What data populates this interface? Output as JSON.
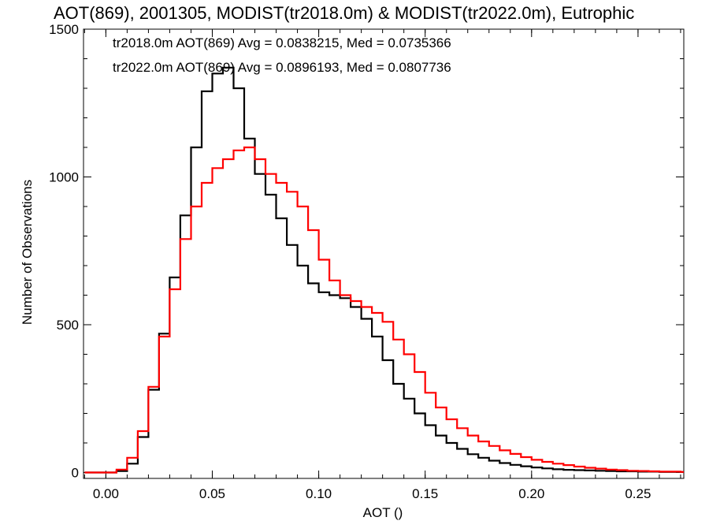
{
  "chart_data": {
    "type": "line",
    "title": "AOT(869), 2001305, MODIST(tr2018.0m) & MODIST(tr2022.0m), Eutrophic",
    "xlabel": "AOT ()",
    "ylabel": "Number of Observations",
    "xlim": [
      -0.0105,
      0.2715
    ],
    "ylim": [
      -20,
      1500
    ],
    "x_ticks": [
      "0.00",
      "0.05",
      "0.10",
      "0.15",
      "0.20",
      "0.25"
    ],
    "y_ticks": [
      "0",
      "500",
      "1000",
      "1500"
    ],
    "grid": false,
    "annotations": [
      {
        "text": "tr2018.0m AOT(869) Avg = 0.0838215, Med = 0.0735366",
        "color": "#000000"
      },
      {
        "text": "tr2022.0m AOT(869) Avg = 0.0896193, Med = 0.0807736",
        "color": "#ff0000"
      }
    ],
    "series": [
      {
        "color": "#000000",
        "style": "step",
        "x": [
          -0.01,
          0.0,
          0.005,
          0.01,
          0.015,
          0.02,
          0.025,
          0.03,
          0.035,
          0.04,
          0.045,
          0.05,
          0.055,
          0.06,
          0.065,
          0.07,
          0.075,
          0.08,
          0.085,
          0.09,
          0.095,
          0.1,
          0.105,
          0.11,
          0.115,
          0.12,
          0.125,
          0.13,
          0.135,
          0.14,
          0.145,
          0.15,
          0.155,
          0.16,
          0.165,
          0.17,
          0.175,
          0.18,
          0.185,
          0.19,
          0.195,
          0.2,
          0.205,
          0.21,
          0.215,
          0.22,
          0.225,
          0.23,
          0.235,
          0.24,
          0.245,
          0.25,
          0.255,
          0.26,
          0.265,
          0.27
        ],
        "y": [
          0,
          0,
          5,
          30,
          120,
          280,
          470,
          660,
          870,
          1100,
          1290,
          1350,
          1370,
          1300,
          1130,
          1010,
          940,
          860,
          770,
          700,
          640,
          610,
          600,
          590,
          560,
          520,
          460,
          380,
          300,
          250,
          200,
          160,
          125,
          100,
          80,
          62,
          50,
          40,
          32,
          26,
          21,
          17,
          14,
          11,
          9,
          8,
          7,
          6,
          5,
          4,
          4,
          3,
          3,
          2,
          2,
          2
        ]
      },
      {
        "color": "#ff0000",
        "style": "step",
        "x": [
          -0.01,
          0.0,
          0.005,
          0.01,
          0.015,
          0.02,
          0.025,
          0.03,
          0.035,
          0.04,
          0.045,
          0.05,
          0.055,
          0.06,
          0.065,
          0.07,
          0.075,
          0.08,
          0.085,
          0.09,
          0.095,
          0.1,
          0.105,
          0.11,
          0.115,
          0.12,
          0.125,
          0.13,
          0.135,
          0.14,
          0.145,
          0.15,
          0.155,
          0.16,
          0.165,
          0.17,
          0.175,
          0.18,
          0.185,
          0.19,
          0.195,
          0.2,
          0.205,
          0.21,
          0.215,
          0.22,
          0.225,
          0.23,
          0.235,
          0.24,
          0.245,
          0.25,
          0.255,
          0.26,
          0.265,
          0.27
        ],
        "y": [
          0,
          0,
          10,
          50,
          140,
          290,
          460,
          620,
          790,
          900,
          980,
          1030,
          1060,
          1090,
          1100,
          1060,
          1010,
          980,
          950,
          900,
          820,
          720,
          650,
          600,
          580,
          560,
          540,
          510,
          450,
          400,
          340,
          270,
          220,
          180,
          150,
          125,
          105,
          90,
          75,
          63,
          52,
          43,
          36,
          30,
          25,
          20,
          16,
          13,
          10,
          8,
          6,
          5,
          4,
          3,
          3,
          2
        ]
      }
    ]
  }
}
